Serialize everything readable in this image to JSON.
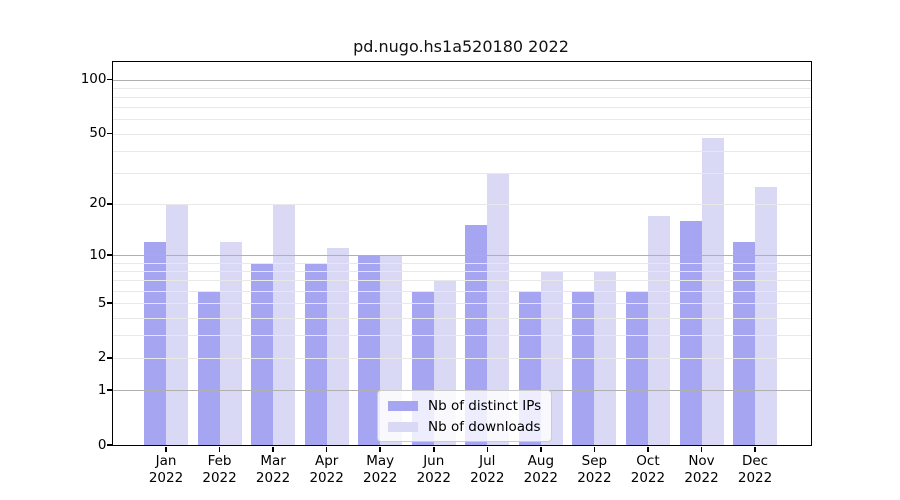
{
  "title": "pd.nugo.hs1a520180 2022",
  "colors": {
    "distinct_ips_bar": "#a5a5f2",
    "downloads_bar": "#d9d9f6",
    "major_gridline": "#b0b0b0",
    "minor_gridline": "#e8e8e8",
    "axis": "#000000",
    "legend_border": "#cccccc"
  },
  "chart_data": {
    "type": "bar",
    "title": "pd.nugo.hs1a520180 2022",
    "xlabel": "",
    "ylabel": "",
    "y_scale": "log1p",
    "ylim": [
      0,
      125
    ],
    "categories": [
      "Jan 2022",
      "Feb 2022",
      "Mar 2022",
      "Apr 2022",
      "May 2022",
      "Jun 2022",
      "Jul 2022",
      "Aug 2022",
      "Sep 2022",
      "Oct 2022",
      "Nov 2022",
      "Dec 2022"
    ],
    "series": [
      {
        "name": "Nb of distinct IPs",
        "color": "#a5a5f2",
        "values": [
          12,
          6,
          9,
          9,
          10,
          6,
          15,
          6,
          6,
          6,
          16,
          12
        ]
      },
      {
        "name": "Nb of downloads",
        "color": "#d9d9f6",
        "values": [
          20,
          12,
          20,
          11,
          10,
          7,
          30,
          8,
          8,
          17,
          47,
          25
        ]
      }
    ],
    "y_tick_values": [
      100,
      50,
      20,
      10,
      5,
      2,
      1,
      0
    ],
    "y_tick_labels": [
      "100",
      "50",
      "20",
      "10",
      "5",
      "2",
      "1",
      "0"
    ],
    "gridlines_major": [
      1,
      10,
      100
    ],
    "gridlines_minor": [
      2,
      3,
      4,
      5,
      6,
      7,
      8,
      9,
      20,
      30,
      40,
      50,
      60,
      70,
      80,
      90
    ],
    "grid": "on",
    "legend_position": "lower center",
    "legend_entries": [
      "Nb of distinct IPs",
      "Nb of downloads"
    ]
  }
}
